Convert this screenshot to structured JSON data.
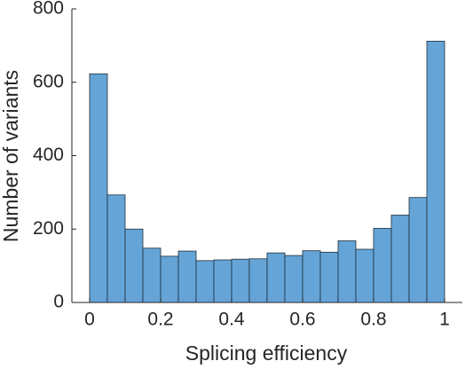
{
  "chart_data": {
    "type": "histogram",
    "xlabel": "Splicing efficiency",
    "ylabel": "Number of variants",
    "bins": [
      0,
      0.05,
      0.1,
      0.15,
      0.2,
      0.25,
      0.3,
      0.35,
      0.4,
      0.45,
      0.5,
      0.55,
      0.6,
      0.65,
      0.7,
      0.75,
      0.8,
      0.85,
      0.9,
      0.95,
      1
    ],
    "values": [
      623,
      293,
      200,
      148,
      126,
      140,
      114,
      116,
      118,
      119,
      135,
      128,
      141,
      137,
      168,
      145,
      202,
      238,
      286,
      712
    ],
    "color": "#65a4d6",
    "edgecolor": "#1f2f3d",
    "xlim": [
      -0.05,
      1.05
    ],
    "ylim": [
      0,
      800
    ],
    "xticks": [
      0,
      0.2,
      0.4,
      0.6,
      0.8,
      1
    ],
    "yticks": [
      0,
      200,
      400,
      600,
      800
    ],
    "grid": false
  }
}
